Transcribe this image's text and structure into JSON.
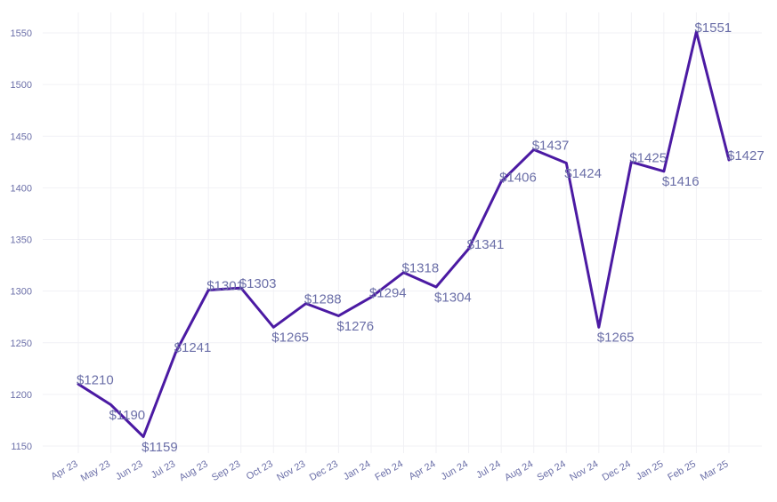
{
  "chart_data": {
    "type": "line",
    "title": "",
    "xlabel": "",
    "ylabel": "",
    "categories": [
      "Apr 23",
      "May 23",
      "Jun 23",
      "Jul 23",
      "Aug 23",
      "Sep 23",
      "Oct 23",
      "Nov 23",
      "Dec 23",
      "Jan 24",
      "Feb 24",
      "Apr 24",
      "Jun 24",
      "Jul 24",
      "Aug 24",
      "Sep 24",
      "Nov 24",
      "Dec 24",
      "Jan 25",
      "Feb 25",
      "Mar 25"
    ],
    "series": [
      {
        "values": [
          1210,
          1190,
          1159,
          1241,
          1301,
          1303,
          1265,
          1288,
          1276,
          1294,
          1318,
          1304,
          1341,
          1406,
          1437,
          1424,
          1265,
          1425,
          1416,
          1551,
          1427
        ],
        "labels": [
          "$1210",
          "$1190",
          "$1159",
          "$1241",
          "$1301",
          "$1303",
          "$1265",
          "$1288",
          "$1276",
          "$1294",
          "$1318",
          "$1304",
          "$1341",
          "$1406",
          "$1437",
          "$1424",
          "$1265",
          "$1425",
          "$1416",
          "$1551",
          "$1427"
        ]
      }
    ],
    "yticks": [
      1150,
      1200,
      1250,
      1300,
      1350,
      1400,
      1450,
      1500,
      1550
    ],
    "ylim": [
      1140,
      1570
    ],
    "grid": true,
    "legend": "none",
    "line_color": "#4b1aa3",
    "label_color": "#6b6fa8"
  }
}
